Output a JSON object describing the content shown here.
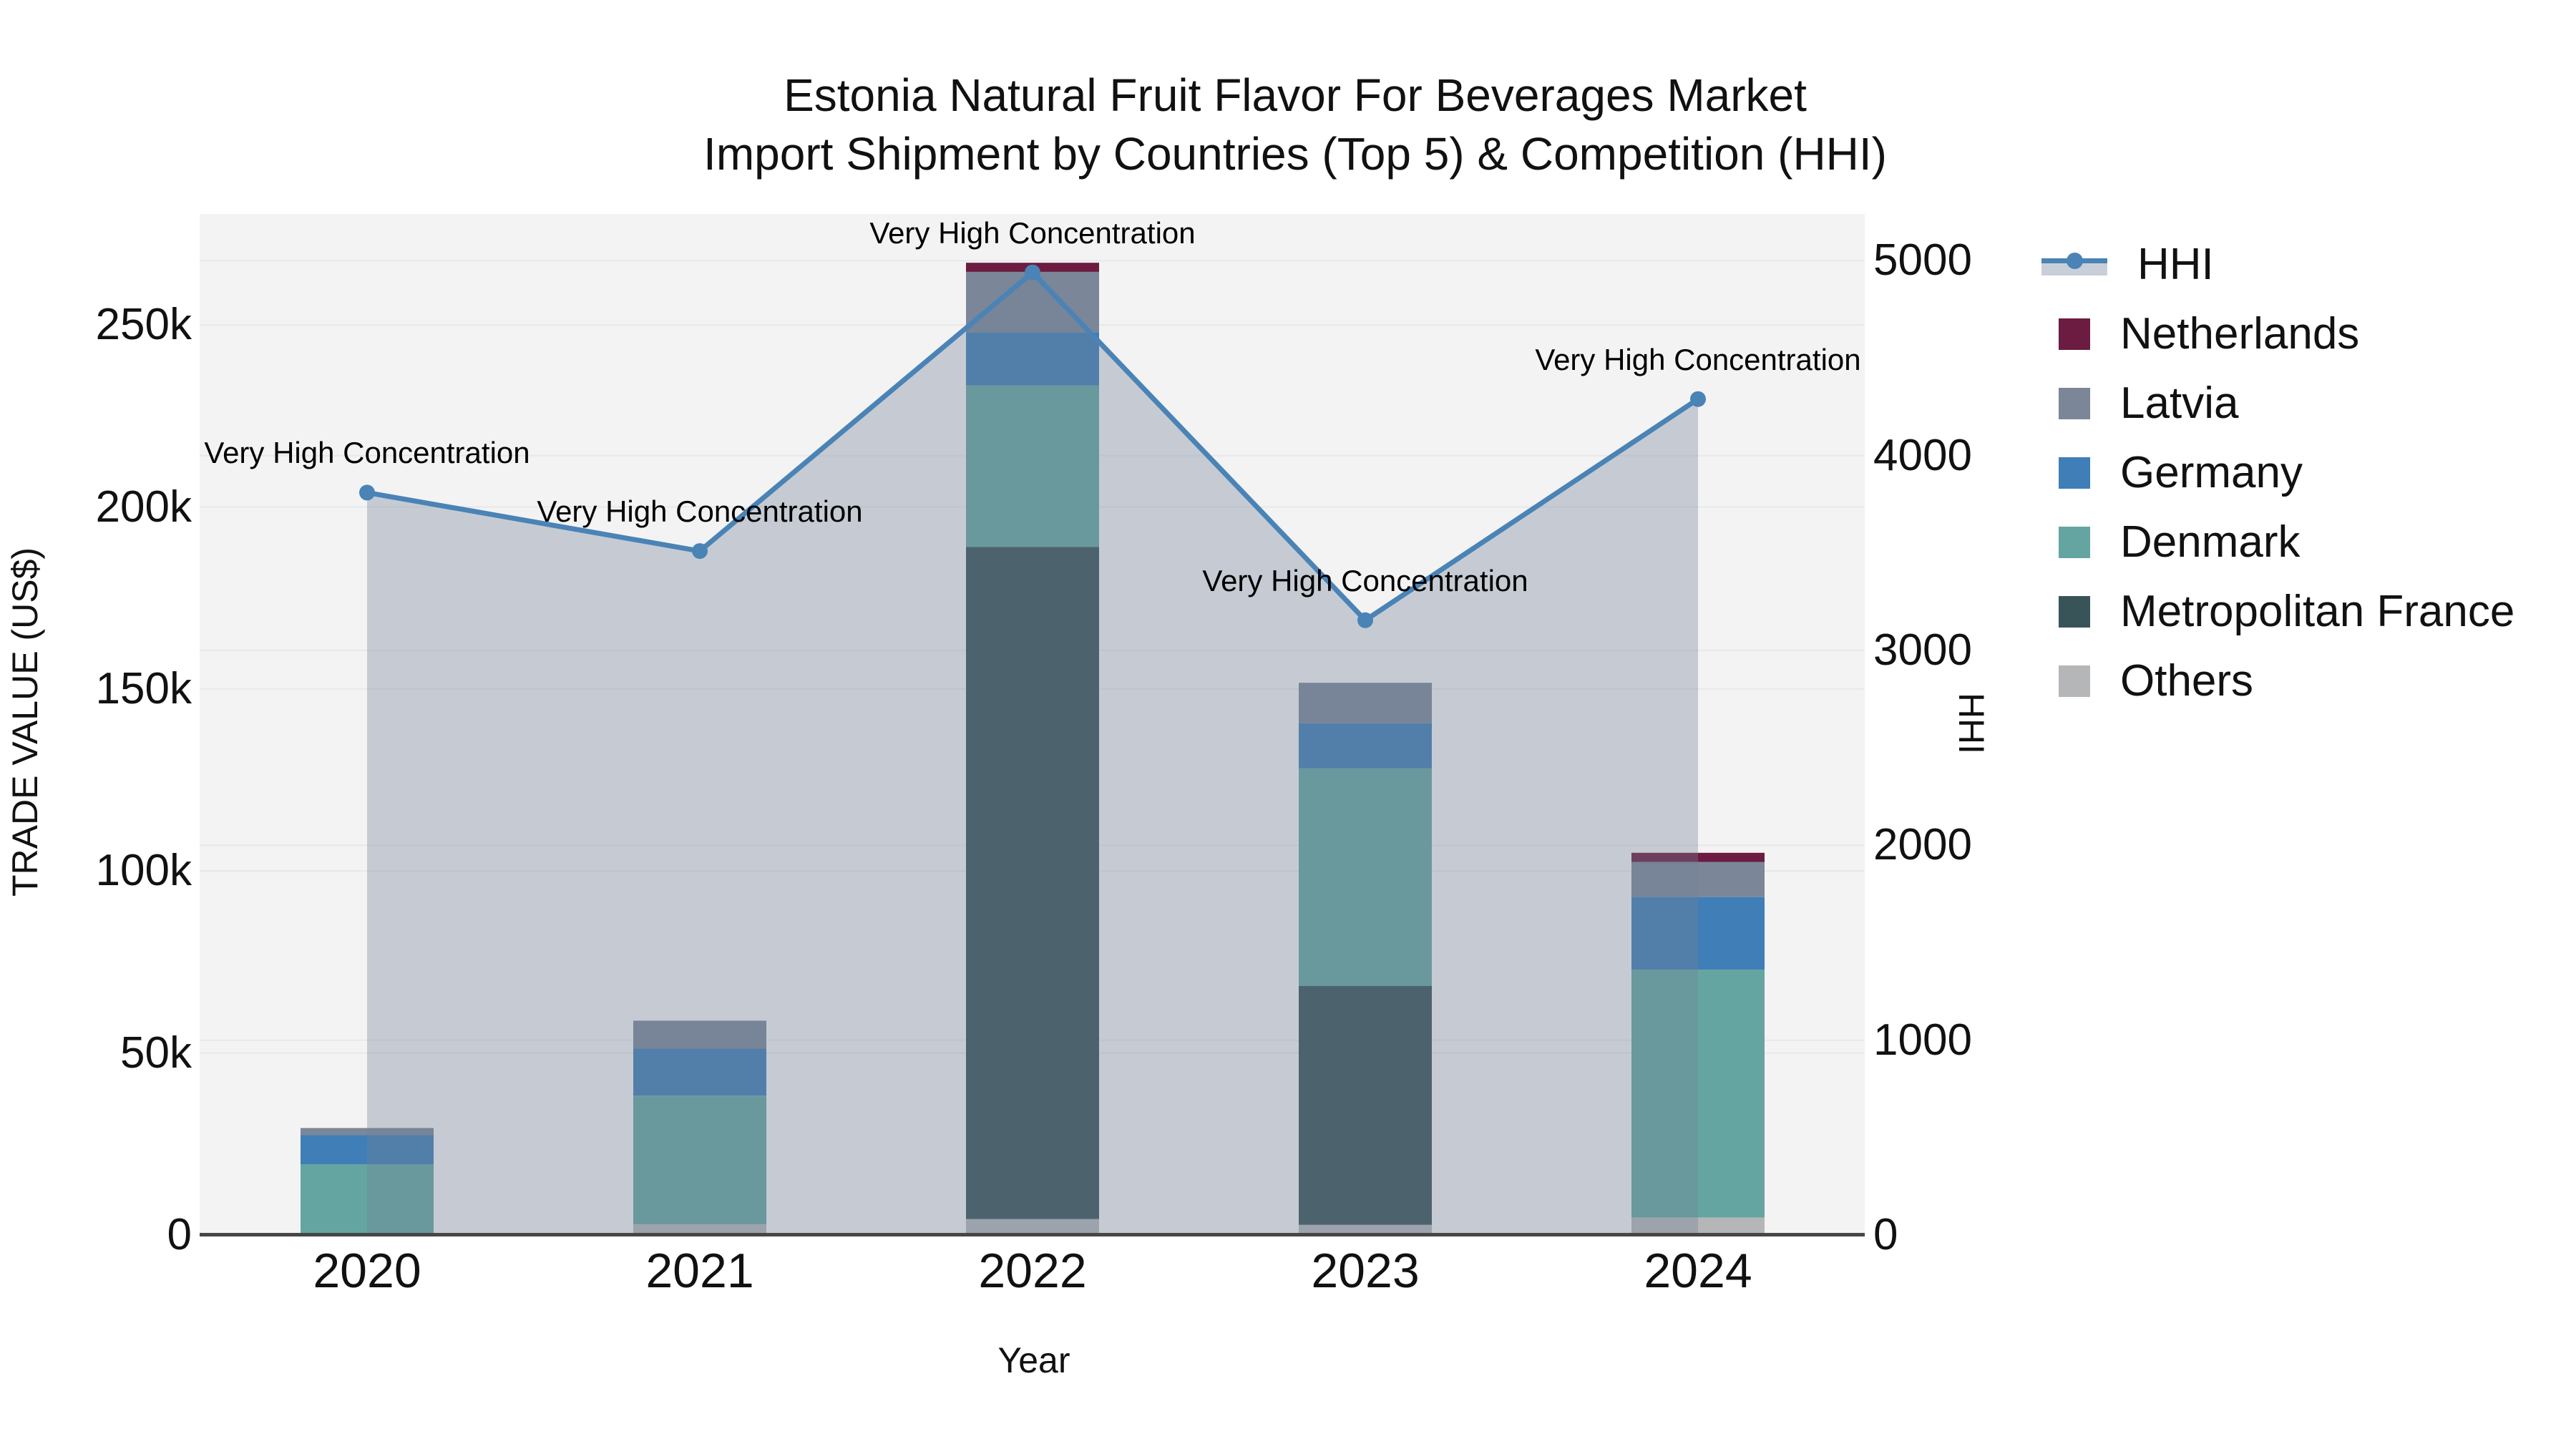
{
  "title": {
    "line1": "Estonia Natural Fruit Flavor For Beverages Market",
    "line2": "Import Shipment by Countries (Top 5) & Competition (HHI)"
  },
  "axes": {
    "x_title": "Year",
    "y_left_title": "TRADE VALUE (US$)",
    "y_right_title": "HHI",
    "x_ticks": [
      "2020",
      "2021",
      "2022",
      "2023",
      "2024"
    ],
    "y_left_ticks": [
      {
        "label": "0",
        "value": 0
      },
      {
        "label": "50k",
        "value": 50000
      },
      {
        "label": "100k",
        "value": 100000
      },
      {
        "label": "150k",
        "value": 150000
      },
      {
        "label": "200k",
        "value": 200000
      },
      {
        "label": "250k",
        "value": 250000
      }
    ],
    "y_right_ticks": [
      {
        "label": "0",
        "value": 0
      },
      {
        "label": "1000",
        "value": 1000
      },
      {
        "label": "2000",
        "value": 2000
      },
      {
        "label": "3000",
        "value": 3000
      },
      {
        "label": "4000",
        "value": 4000
      },
      {
        "label": "5000",
        "value": 5000
      }
    ]
  },
  "legend": {
    "items": [
      {
        "label": "HHI",
        "type": "line",
        "color": "#4A83B6"
      },
      {
        "label": "Netherlands",
        "type": "swatch",
        "color": "#6B1C40"
      },
      {
        "label": "Latvia",
        "type": "swatch",
        "color": "#7B8698"
      },
      {
        "label": "Germany",
        "type": "swatch",
        "color": "#3F7EB6"
      },
      {
        "label": "Denmark",
        "type": "swatch",
        "color": "#64A5A2"
      },
      {
        "label": "Metropolitan France",
        "type": "swatch",
        "color": "#385459"
      },
      {
        "label": "Others",
        "type": "swatch",
        "color": "#B4B6B8"
      }
    ]
  },
  "colors": {
    "hhi_line": "#4A83B6",
    "hhi_area_fill": "rgba(116,130,150,0.35)",
    "legend_band": "#C9CFD8",
    "plot_bg": "#F3F3F4",
    "grid": "#E7E8EA",
    "axis_line": "#474747"
  },
  "chart_data": {
    "type": "bar+line",
    "title": "Estonia Natural Fruit Flavor For Beverages Market Import Shipment by Countries (Top 5) & Competition (HHI)",
    "categories": [
      "2020",
      "2021",
      "2022",
      "2023",
      "2024"
    ],
    "xlabel": "Year",
    "ylabel_left": "TRADE VALUE (US$)",
    "ylabel_right": "HHI",
    "ylim_left": [
      0,
      280500
    ],
    "ylim_right": [
      0,
      5240
    ],
    "grid_left_values": [
      50000,
      100000,
      150000,
      200000,
      250000
    ],
    "grid_right_values": [
      1000,
      2000,
      3000,
      4000,
      5000
    ],
    "bar_stack_order_bottom_to_top": [
      "Others",
      "Metropolitan France",
      "Denmark",
      "Germany",
      "Latvia",
      "Netherlands"
    ],
    "series": [
      {
        "name": "Others",
        "color": "#B4B6B8",
        "values": [
          0,
          3000,
          4400,
          2800,
          4800
        ]
      },
      {
        "name": "Metropolitan France",
        "color": "#385459",
        "values": [
          0,
          0,
          184600,
          65600,
          0
        ]
      },
      {
        "name": "Denmark",
        "color": "#64A5A2",
        "values": [
          19400,
          35300,
          44400,
          59800,
          68100
        ]
      },
      {
        "name": "Germany",
        "color": "#3F7EB6",
        "values": [
          8100,
          12900,
          14600,
          12400,
          20000
        ]
      },
      {
        "name": "Latvia",
        "color": "#7B8698",
        "values": [
          1900,
          7700,
          16600,
          11100,
          9600
        ]
      },
      {
        "name": "Netherlands",
        "color": "#6B1C40",
        "values": [
          0,
          0,
          2500,
          0,
          2500
        ]
      }
    ],
    "bar_totals": [
      29400,
      58900,
      267100,
      151700,
      105000
    ],
    "line_series": {
      "name": "HHI",
      "axis": "right",
      "color": "#4A83B6",
      "values": [
        3810,
        3510,
        4940,
        3155,
        4290
      ],
      "annotations": [
        "Very High Concentration",
        "Very High Concentration",
        "Very High Concentration",
        "Very High Concentration",
        "Very High Concentration"
      ]
    },
    "legend_position": "right",
    "grid": true
  }
}
